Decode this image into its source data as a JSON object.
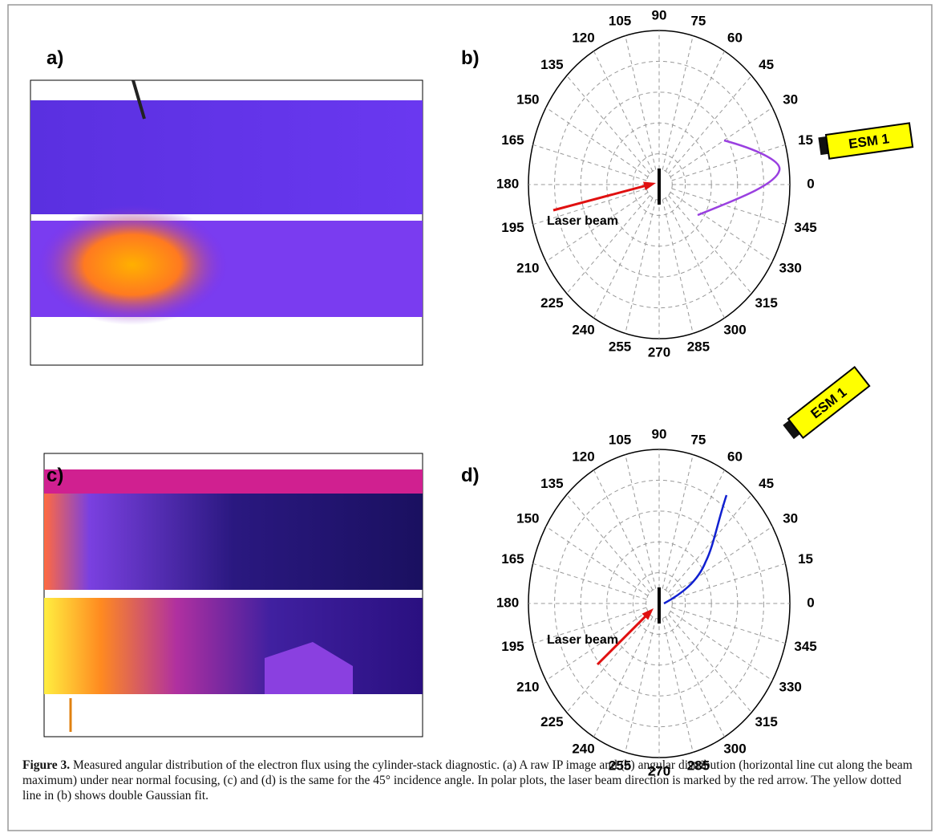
{
  "panels": [
    {
      "label": "a)"
    },
    {
      "label": "b)"
    },
    {
      "label": "c)"
    },
    {
      "label": "d)"
    }
  ],
  "polar_plots": [
    {
      "angle_labels": [
        0,
        15,
        30,
        45,
        60,
        75,
        90,
        105,
        120,
        135,
        150,
        165,
        180,
        195,
        210,
        225,
        240,
        255,
        270,
        285,
        300,
        315,
        330,
        345
      ],
      "laser_label": "Laser beam",
      "detector_label": "ESM 1"
    },
    {
      "angle_labels": [
        0,
        15,
        30,
        45,
        60,
        75,
        90,
        105,
        120,
        135,
        150,
        165,
        180,
        195,
        210,
        225,
        240,
        255,
        270,
        285,
        300,
        315,
        330,
        345
      ],
      "laser_label": "Laser beam",
      "detector_label": "ESM 1"
    }
  ],
  "caption": {
    "label": "Figure 3.",
    "text": "Measured angular distribution of the electron flux using the cylinder-stack diagnostic. (a) A raw IP image and (b) angular distribution (horizontal line cut along the beam maximum) under near normal focusing, (c) and (d) is the same for the 45° incidence angle. In polar plots, the laser beam direction is marked by the red arrow. The yellow dotted line in (b) shows double Gaussian fit."
  }
}
